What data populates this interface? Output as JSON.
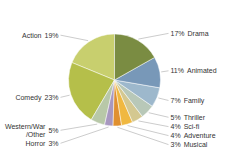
{
  "chart_data": {
    "type": "pie",
    "categories": [
      "Action",
      "Comedy",
      "Western/War\n/Other",
      "Horror",
      "Musical",
      "Adventure",
      "Sci-fi",
      "Thriller",
      "Family",
      "Animated",
      "Drama"
    ],
    "values": [
      19,
      23,
      5,
      3,
      3,
      4,
      4,
      5,
      7,
      11,
      17
    ],
    "value_labels": [
      "19%",
      "23%",
      "5%",
      "3%",
      "3%",
      "4%",
      "4%",
      "5%",
      "7%",
      "11%",
      "17%"
    ],
    "colors": [
      "#c8cf6e",
      "#b5bf4a",
      "#b8c8a8",
      "#a898c0",
      "#e09030",
      "#f0b840",
      "#d4c890",
      "#b8c8b8",
      "#9db8cc",
      "#7898b8",
      "#7a8c42"
    ],
    "data_labels": true
  }
}
